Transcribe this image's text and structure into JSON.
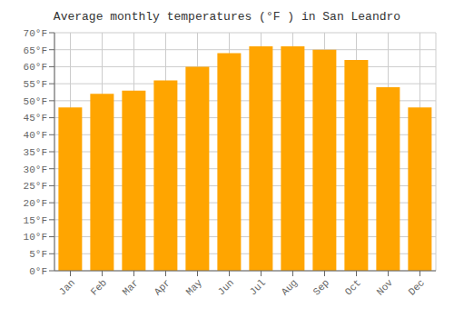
{
  "chart_data": {
    "type": "bar",
    "title": "Average monthly temperatures (°F ) in San Leandro",
    "categories": [
      "Jan",
      "Feb",
      "Mar",
      "Apr",
      "May",
      "Jun",
      "Jul",
      "Aug",
      "Sep",
      "Oct",
      "Nov",
      "Dec"
    ],
    "values": [
      48,
      52,
      53,
      56,
      60,
      64,
      66,
      66,
      65,
      62,
      54,
      48
    ],
    "color": "#FFA500",
    "ylim": [
      0,
      70
    ],
    "yticks": [
      {
        "value": 0,
        "label": "0°F"
      },
      {
        "value": 5,
        "label": "5°F"
      },
      {
        "value": 10,
        "label": "10°F"
      },
      {
        "value": 15,
        "label": "15°F"
      },
      {
        "value": 20,
        "label": "20°F"
      },
      {
        "value": 25,
        "label": "25°F"
      },
      {
        "value": 30,
        "label": "30°F"
      },
      {
        "value": 35,
        "label": "35°F"
      },
      {
        "value": 40,
        "label": "40°F"
      },
      {
        "value": 45,
        "label": "45°F"
      },
      {
        "value": 50,
        "label": "50°F"
      },
      {
        "value": 55,
        "label": "55°F"
      },
      {
        "value": 60,
        "label": "60°F"
      },
      {
        "value": 65,
        "label": "65°F"
      },
      {
        "value": 70,
        "label": "70°F"
      }
    ],
    "grid": true
  }
}
